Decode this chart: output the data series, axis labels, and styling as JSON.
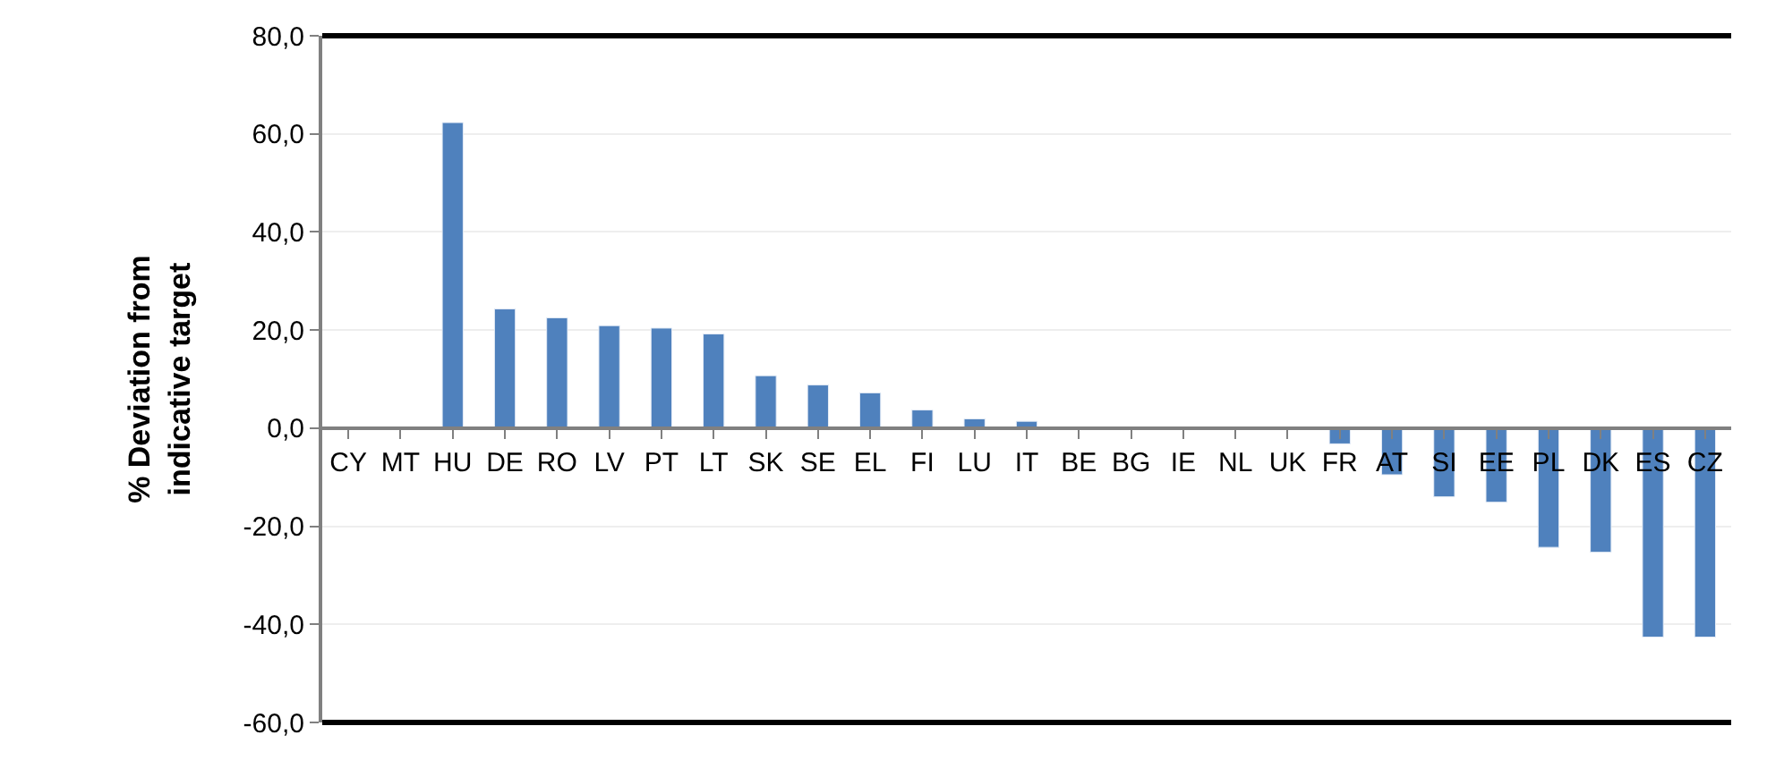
{
  "chart_data": {
    "type": "bar",
    "ylabel": "% Deviation from\nindicative target",
    "categories": [
      "CY",
      "MT",
      "HU",
      "DE",
      "RO",
      "LV",
      "PT",
      "LT",
      "SK",
      "SE",
      "EL",
      "FI",
      "LU",
      "IT",
      "BE",
      "BG",
      "IE",
      "NL",
      "UK",
      "FR",
      "AT",
      "SI",
      "EE",
      "PL",
      "DK",
      "ES",
      "CZ"
    ],
    "values": [
      null,
      null,
      62.3,
      24.3,
      22.5,
      20.9,
      20.4,
      19.2,
      10.7,
      8.8,
      7.2,
      3.7,
      1.9,
      1.4,
      null,
      null,
      null,
      null,
      null,
      -3.2,
      -9.5,
      -14.0,
      -15.1,
      -24.3,
      -25.3,
      -42.6,
      -42.6
    ],
    "color": "#4f81bd",
    "ylim": [
      -60,
      80
    ],
    "yticks": [
      {
        "value": -60,
        "label": "-60,0"
      },
      {
        "value": -40,
        "label": "-40,0"
      },
      {
        "value": -20,
        "label": "-20,0"
      },
      {
        "value": 0,
        "label": "0,0"
      },
      {
        "value": 20,
        "label": "20,0"
      },
      {
        "value": 40,
        "label": "40,0"
      },
      {
        "value": 60,
        "label": "60,0"
      },
      {
        "value": 80,
        "label": "80,0"
      }
    ],
    "grid": "y"
  }
}
